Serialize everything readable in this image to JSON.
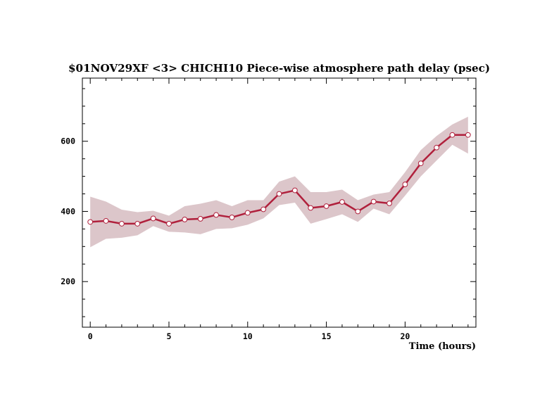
{
  "chart_data": {
    "type": "line",
    "title": "$01NOV29XF <3>  CHICHI10  Piece-wise atmosphere path delay (psec)",
    "xlabel": "Time (hours)",
    "ylabel": "",
    "xlim": [
      -0.5,
      24.5
    ],
    "ylim": [
      70,
      780
    ],
    "x_ticks": [
      0,
      5,
      10,
      15,
      20
    ],
    "y_ticks": [
      200,
      400,
      600
    ],
    "x_tick_labels": [
      "0",
      "5",
      "10",
      "15",
      "20"
    ],
    "y_tick_labels": [
      "200",
      "400",
      "600"
    ],
    "grid": false,
    "series": [
      {
        "x": [
          0,
          1,
          2,
          3,
          4,
          5,
          6,
          7,
          8,
          9,
          10,
          11,
          12,
          13,
          14,
          15,
          16,
          17,
          18,
          19,
          20,
          21,
          22,
          23,
          24
        ],
        "values": [
          370,
          373,
          365,
          365,
          380,
          365,
          377,
          379,
          390,
          383,
          396,
          406,
          450,
          460,
          410,
          415,
          427,
          400,
          428,
          423,
          477,
          537,
          582,
          618,
          618
        ],
        "upper": [
          442,
          428,
          405,
          398,
          402,
          388,
          415,
          422,
          432,
          415,
          432,
          432,
          485,
          500,
          455,
          455,
          462,
          432,
          448,
          455,
          512,
          575,
          615,
          648,
          670
        ],
        "lower": [
          298,
          322,
          325,
          332,
          358,
          342,
          340,
          335,
          350,
          352,
          362,
          380,
          418,
          425,
          365,
          378,
          392,
          370,
          408,
          392,
          445,
          500,
          545,
          590,
          565
        ]
      }
    ],
    "colors": {
      "line": "#b0203c",
      "band": "#dcc6ca",
      "marker_fill": "#ffffff",
      "marker_stroke": "#b0203c",
      "axis": "#000000"
    }
  }
}
